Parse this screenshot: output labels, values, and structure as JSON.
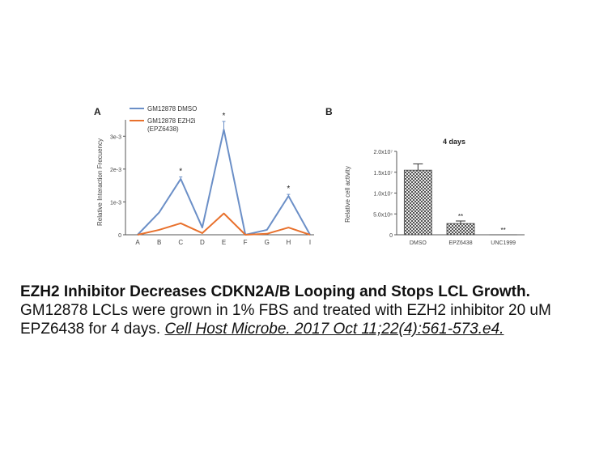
{
  "caption": {
    "title": "EZH2 Inhibitor Decreases CDKN2A/B Looping and Stops LCL Growth.",
    "body": "GM12878 LCLs were grown in 1% FBS and treated with EZH2 inhibitor 20 uM EPZ6438 for 4 days.",
    "citation": "Cell Host Microbe. 2017 Oct 11;22(4):561-573.e4."
  },
  "chart_data": [
    {
      "panel": "A",
      "type": "line",
      "title": "",
      "xlabel": "",
      "ylabel": "Relative Interaction Frecuency",
      "categories": [
        "A",
        "B",
        "C",
        "D",
        "E",
        "F",
        "G",
        "H",
        "I"
      ],
      "ylim": [
        0,
        0.0035
      ],
      "yticks": [
        0,
        0.001,
        0.002,
        0.003
      ],
      "ytick_labels": [
        "0",
        "1e-3",
        "2e-3",
        "3e-3"
      ],
      "series": [
        {
          "name": "GM12878 DMSO",
          "color": "#6b8fc7",
          "values": [
            0,
            0.00068,
            0.0017,
            0.00022,
            0.0032,
            0,
            0.00015,
            0.00118,
            0
          ],
          "errors": [
            0,
            0,
            6e-05,
            0,
            0.00025,
            0,
            0,
            5e-05,
            0
          ]
        },
        {
          "name": "GM12878 EZH2i (EPZ6438)",
          "color": "#e8712d",
          "values": [
            0,
            0.00015,
            0.00035,
            5e-05,
            0.00065,
            0,
            3e-05,
            0.00022,
            0
          ],
          "errors": [
            0,
            0,
            0,
            0,
            0,
            0,
            0,
            0,
            0
          ]
        }
      ],
      "annotations": [
        {
          "category": "C",
          "text": "*"
        },
        {
          "category": "E",
          "text": "*"
        },
        {
          "category": "H",
          "text": "*"
        }
      ],
      "grid": false,
      "legend": "top-left"
    },
    {
      "panel": "B",
      "type": "bar",
      "title": "4 days",
      "xlabel": "",
      "ylabel": "Relative cell activity",
      "categories": [
        "DMSO",
        "EPZ6438",
        "UNC1999"
      ],
      "values": [
        15500000,
        2700000,
        0
      ],
      "errors": [
        1500000,
        600000,
        0
      ],
      "ylim": [
        0,
        20000000
      ],
      "yticks": [
        0,
        5000000,
        10000000,
        15000000,
        20000000
      ],
      "ytick_labels": [
        "0",
        "5.0x10⁶",
        "1.0x10⁷",
        "1.5x10⁷",
        "2.0x10⁷"
      ],
      "annotations": [
        {
          "category": "EPZ6438",
          "text": "**"
        },
        {
          "category": "UNC1999",
          "text": "**"
        }
      ],
      "grid": false,
      "legend": "none"
    }
  ]
}
